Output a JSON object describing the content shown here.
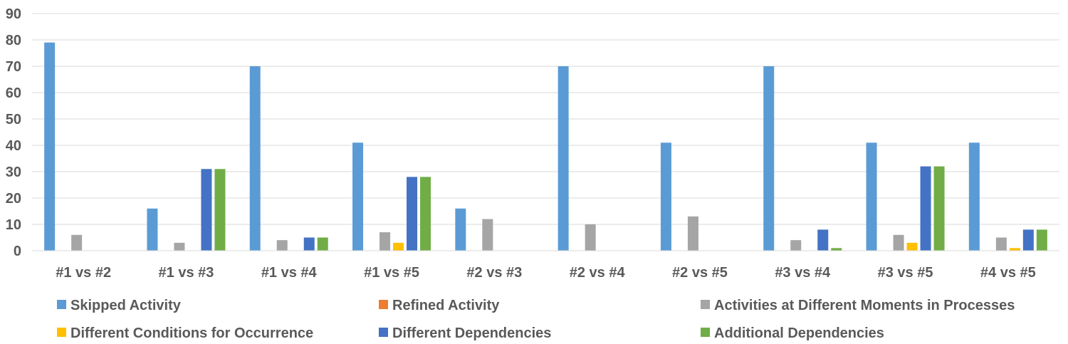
{
  "chart_data": {
    "type": "bar",
    "categories": [
      "#1 vs #2",
      "#1 vs #3",
      "#1 vs #4",
      "#1 vs #5",
      "#2 vs #3",
      "#2 vs #4",
      "#2 vs #5",
      "#3 vs #4",
      "#3 vs #5",
      "#4 vs #5"
    ],
    "series": [
      {
        "name": "Skipped Activity",
        "color": "#5B9BD5",
        "values": [
          79,
          16,
          70,
          41,
          16,
          70,
          41,
          70,
          41,
          41
        ]
      },
      {
        "name": "Refined Activity",
        "color": "#ED7D31",
        "values": [
          0,
          0,
          0,
          0,
          0,
          0,
          0,
          0,
          0,
          0
        ]
      },
      {
        "name": "Activities at Different Moments in Processes",
        "color": "#A5A5A5",
        "values": [
          6,
          3,
          4,
          7,
          12,
          10,
          13,
          4,
          6,
          5
        ]
      },
      {
        "name": "Different Conditions for Occurrence",
        "color": "#FFC000",
        "values": [
          0,
          0,
          0,
          3,
          0,
          0,
          0,
          0,
          3,
          1
        ]
      },
      {
        "name": "Different Dependencies",
        "color": "#4472C4",
        "values": [
          0,
          31,
          5,
          28,
          0,
          0,
          0,
          8,
          32,
          8
        ]
      },
      {
        "name": "Additional Dependencies",
        "color": "#70AD47",
        "values": [
          0,
          31,
          5,
          28,
          0,
          0,
          0,
          1,
          32,
          8
        ]
      }
    ],
    "ylim": [
      0,
      90
    ],
    "yticks": [
      0,
      10,
      20,
      30,
      40,
      50,
      60,
      70,
      80,
      90
    ],
    "grid": true,
    "legend_position": "bottom"
  }
}
